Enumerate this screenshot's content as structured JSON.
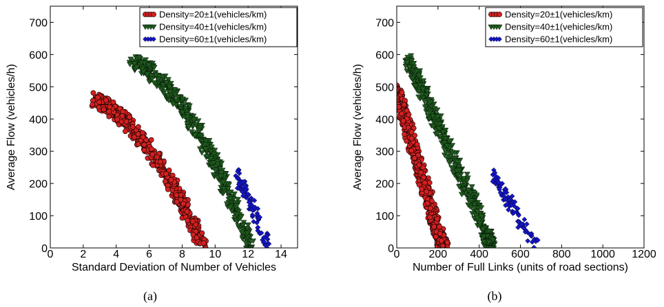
{
  "chart_data": [
    {
      "type": "scatter",
      "panel": "(a)",
      "xlabel": "Standard Deviation of Number of Vehicles",
      "ylabel": "Average Flow (vehicles/h)",
      "xlim": [
        0,
        15
      ],
      "ylim": [
        0,
        750
      ],
      "xticks": [
        0,
        2,
        4,
        6,
        8,
        10,
        12,
        14
      ],
      "yticks": [
        0,
        100,
        200,
        300,
        400,
        500,
        600,
        700
      ],
      "grid": false,
      "legend_position": "top-right",
      "series": [
        {
          "name": "Density=20±1(vehicles/km)",
          "color": "#d42020",
          "marker": "circle",
          "x": [
            2.8,
            3.5,
            4.5,
            5.5,
            6.5,
            7.5,
            8.3,
            9.3
          ],
          "y": [
            460,
            440,
            400,
            340,
            270,
            190,
            110,
            0
          ]
        },
        {
          "name": "Density=40±1(vehicles/km)",
          "color": "#1e5a1e",
          "marker": "triangle-down",
          "x": [
            5.0,
            6.0,
            7.0,
            8.0,
            9.0,
            10.0,
            11.0,
            12.2
          ],
          "y": [
            580,
            550,
            500,
            440,
            360,
            260,
            150,
            0
          ]
        },
        {
          "name": "Density=60±1(vehicles/km)",
          "color": "#1414c8",
          "marker": "star",
          "x": [
            11.3,
            11.8,
            12.3,
            12.8,
            13.3
          ],
          "y": [
            230,
            170,
            120,
            60,
            0
          ]
        }
      ]
    },
    {
      "type": "scatter",
      "panel": "(b)",
      "xlabel": "Number of Full Links (units of road sections)",
      "ylabel": "Average Flow (vehicles/h)",
      "xlim": [
        0,
        1200
      ],
      "ylim": [
        0,
        750
      ],
      "xticks": [
        0,
        200,
        400,
        600,
        800,
        1000,
        1200
      ],
      "yticks": [
        0,
        100,
        200,
        300,
        400,
        500,
        600,
        700
      ],
      "grid": false,
      "legend_position": "top-right",
      "series": [
        {
          "name": "Density=20±1(vehicles/km)",
          "color": "#d42020",
          "marker": "circle",
          "x": [
            0,
            50,
            100,
            150,
            200,
            230
          ],
          "y": [
            490,
            380,
            270,
            160,
            50,
            0
          ]
        },
        {
          "name": "Density=40±1(vehicles/km)",
          "color": "#1e5a1e",
          "marker": "triangle-down",
          "x": [
            50,
            150,
            250,
            350,
            430,
            460
          ],
          "y": [
            590,
            450,
            310,
            170,
            50,
            0
          ]
        },
        {
          "name": "Density=60±1(vehicles/km)",
          "color": "#1414c8",
          "marker": "star",
          "x": [
            470,
            530,
            580,
            630,
            680
          ],
          "y": [
            230,
            160,
            110,
            50,
            0
          ]
        }
      ]
    }
  ]
}
